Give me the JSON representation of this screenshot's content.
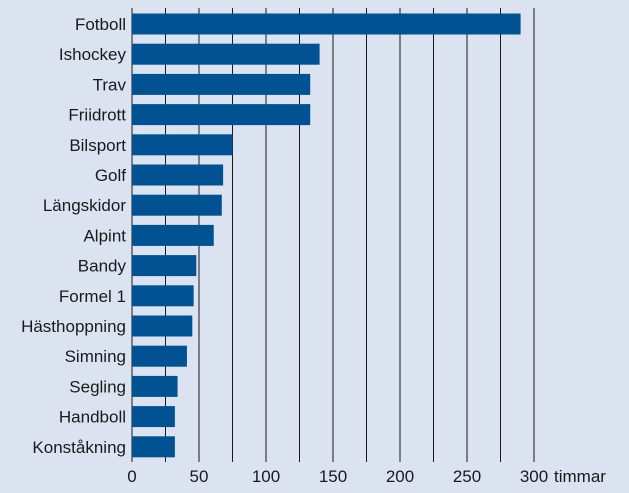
{
  "chart_data": {
    "type": "bar",
    "orientation": "horizontal",
    "title": "",
    "xlabel": "",
    "ylabel": "",
    "unit_label": "timmar",
    "categories": [
      "Fotboll",
      "Ishockey",
      "Trav",
      "Friidrott",
      "Bilsport",
      "Golf",
      "Längskidor",
      "Alpint",
      "Bandy",
      "Formel 1",
      "Hästhoppning",
      "Simning",
      "Segling",
      "Handboll",
      "Konståkning"
    ],
    "values": [
      290,
      140,
      133,
      133,
      75,
      68,
      67,
      61,
      48,
      46,
      45,
      41,
      34,
      32,
      32
    ],
    "xlim": [
      0,
      300
    ],
    "xticks": [
      0,
      50,
      100,
      150,
      200,
      250,
      300
    ],
    "grid_step": 25,
    "grid": true,
    "bar_color": "#005293",
    "grid_color": "#1a1a1a",
    "background": "#dbe3f1"
  }
}
